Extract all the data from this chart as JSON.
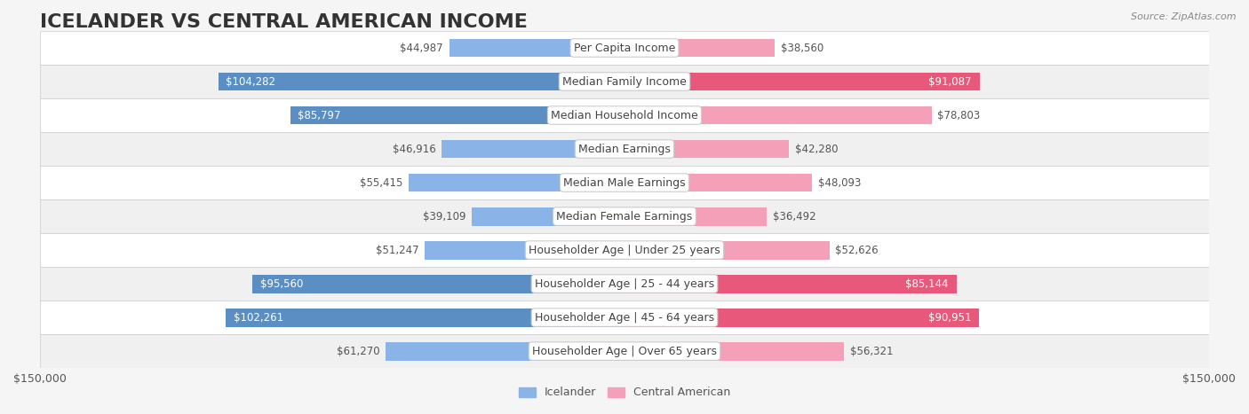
{
  "title": "ICELANDER VS CENTRAL AMERICAN INCOME",
  "source": "Source: ZipAtlas.com",
  "categories": [
    "Per Capita Income",
    "Median Family Income",
    "Median Household Income",
    "Median Earnings",
    "Median Male Earnings",
    "Median Female Earnings",
    "Householder Age | Under 25 years",
    "Householder Age | 25 - 44 years",
    "Householder Age | 45 - 64 years",
    "Householder Age | Over 65 years"
  ],
  "icelander_values": [
    44987,
    104282,
    85797,
    46916,
    55415,
    39109,
    51247,
    95560,
    102261,
    61270
  ],
  "central_american_values": [
    38560,
    91087,
    78803,
    42280,
    48093,
    36492,
    52626,
    85144,
    90951,
    56321
  ],
  "icelander_color": "#8ab4e8",
  "icelander_dark_color": "#5b8fc4",
  "central_american_color": "#f4a0b8",
  "central_american_dark_color": "#e8587a",
  "bar_height": 0.55,
  "xlim": 150000,
  "background_color": "#f5f5f5",
  "row_bg_light": "#f0f0f0",
  "row_bg_white": "#ffffff",
  "label_bg_color": "#ffffff",
  "title_fontsize": 16,
  "label_fontsize": 9,
  "value_fontsize": 8.5,
  "axis_fontsize": 9,
  "legend_fontsize": 9
}
